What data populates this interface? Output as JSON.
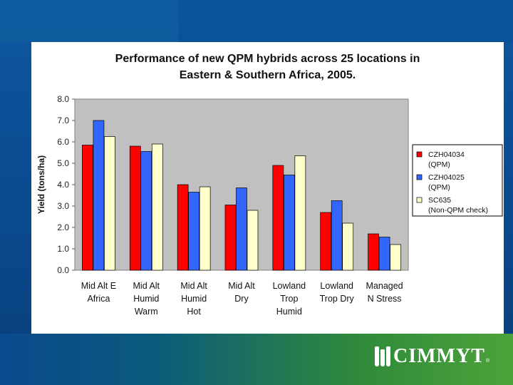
{
  "chart_data": {
    "type": "bar",
    "title": [
      "Performance of new QPM hybrids across 25 locations in",
      "Eastern & Southern Africa, 2005."
    ],
    "ylabel": "Yield (tons/ha)",
    "xlabel": "",
    "ylim": [
      0,
      8
    ],
    "yticks": [
      "0.0",
      "1.0",
      "2.0",
      "3.0",
      "4.0",
      "5.0",
      "6.0",
      "7.0",
      "8.0"
    ],
    "grid": false,
    "legend_position": "right",
    "categories": [
      [
        "Mid Alt E",
        "Africa"
      ],
      [
        "Mid Alt",
        "Humid",
        "Warm"
      ],
      [
        "Mid Alt",
        "Humid",
        "Hot"
      ],
      [
        "Mid Alt",
        "Dry"
      ],
      [
        "Lowland",
        "Trop",
        "Humid"
      ],
      [
        "Lowland",
        "Trop Dry"
      ],
      [
        "Managed",
        "N Stress"
      ]
    ],
    "series": [
      {
        "name": [
          "CZH04034",
          "(QPM)"
        ],
        "color": "#ff0000",
        "values": [
          5.85,
          5.8,
          4.0,
          3.05,
          4.9,
          2.7,
          1.7
        ]
      },
      {
        "name": [
          "CZH04025",
          "(QPM)"
        ],
        "color": "#3366ff",
        "values": [
          7.0,
          5.55,
          3.65,
          3.85,
          4.45,
          3.25,
          1.55
        ]
      },
      {
        "name": [
          "SC635",
          "(Non-QPM check)"
        ],
        "color": "#ffffcc",
        "values": [
          6.25,
          5.9,
          3.9,
          2.8,
          5.35,
          2.2,
          1.2
        ]
      }
    ]
  },
  "logo": {
    "text": "CIMMYT",
    "tm": "®"
  }
}
